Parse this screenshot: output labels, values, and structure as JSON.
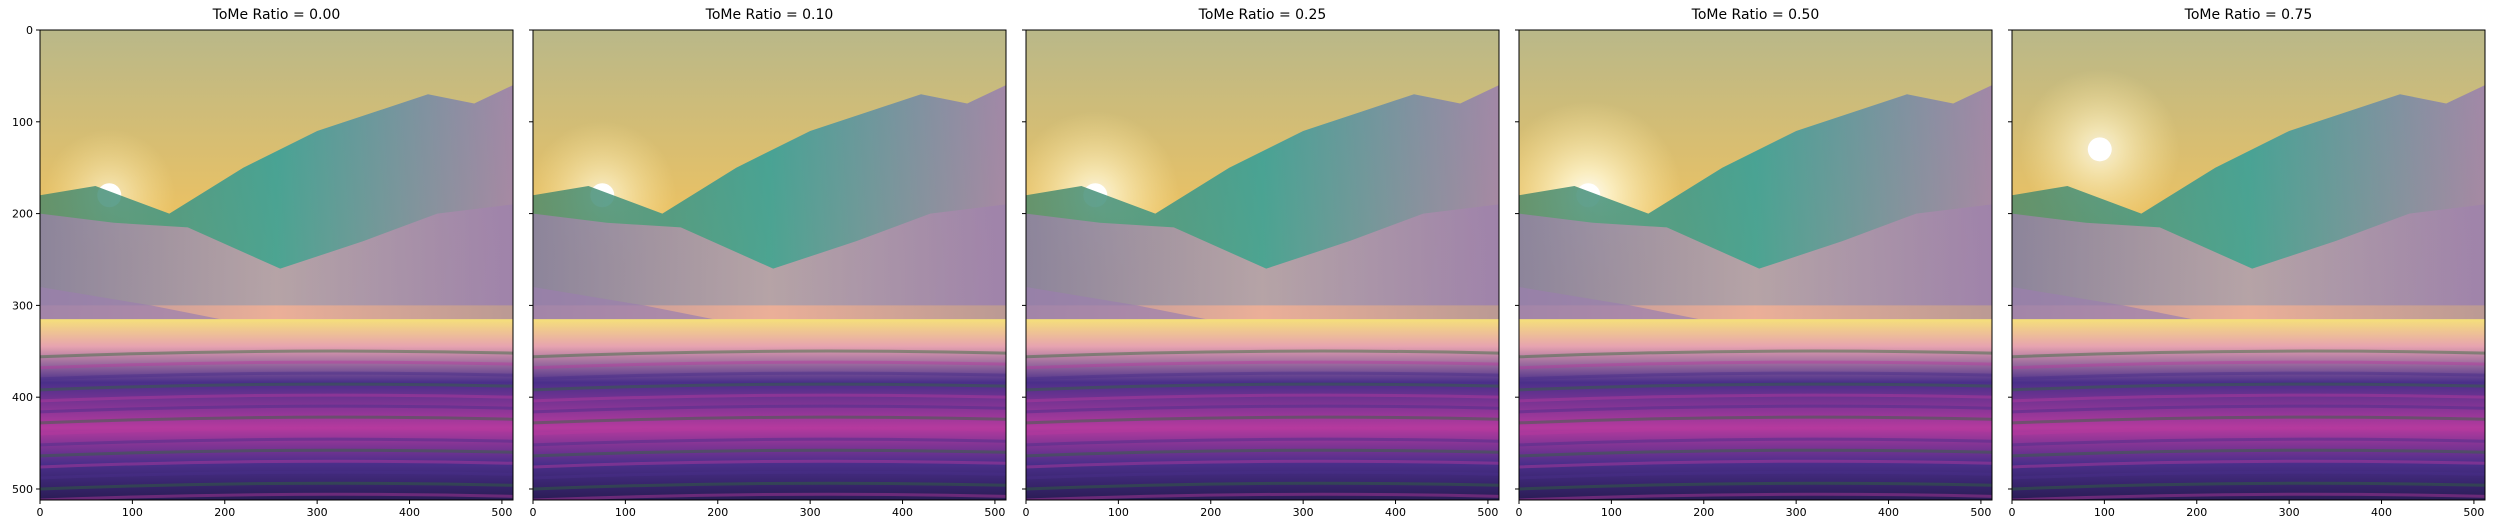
{
  "figure": {
    "panels": [
      {
        "title": "ToMe Ratio = 0.00",
        "show_y_labels": true,
        "sun_glare": 0.15
      },
      {
        "title": "ToMe Ratio = 0.10",
        "show_y_labels": false,
        "sun_glare": 0.35
      },
      {
        "title": "ToMe Ratio = 0.25",
        "show_y_labels": false,
        "sun_glare": 0.6
      },
      {
        "title": "ToMe Ratio = 0.50",
        "show_y_labels": false,
        "sun_glare": 0.85
      },
      {
        "title": "ToMe Ratio = 0.75",
        "show_y_labels": false,
        "sun_glare": 0.5
      }
    ],
    "axes": {
      "x_ticks": [
        "0",
        "100",
        "200",
        "300",
        "400",
        "500"
      ],
      "y_ticks": [
        "0",
        "100",
        "200",
        "300",
        "400",
        "500"
      ],
      "range": [
        0,
        512
      ]
    },
    "image_description_colors": {
      "sky_top": "#b9b889",
      "sky_mid": "#f2c35e",
      "horizon": "#f7d877",
      "mountain_green": "#4f8a6a",
      "mountain_teal": "#2f9e9a",
      "mountain_purple": "#9b7fae",
      "haze_pink": "#e7a3b0",
      "field_gold": "#f5e07a",
      "lavender_deep": "#4a2f8a",
      "lavender_magenta": "#b53a9e",
      "grass_green": "#2e6b3a"
    }
  }
}
